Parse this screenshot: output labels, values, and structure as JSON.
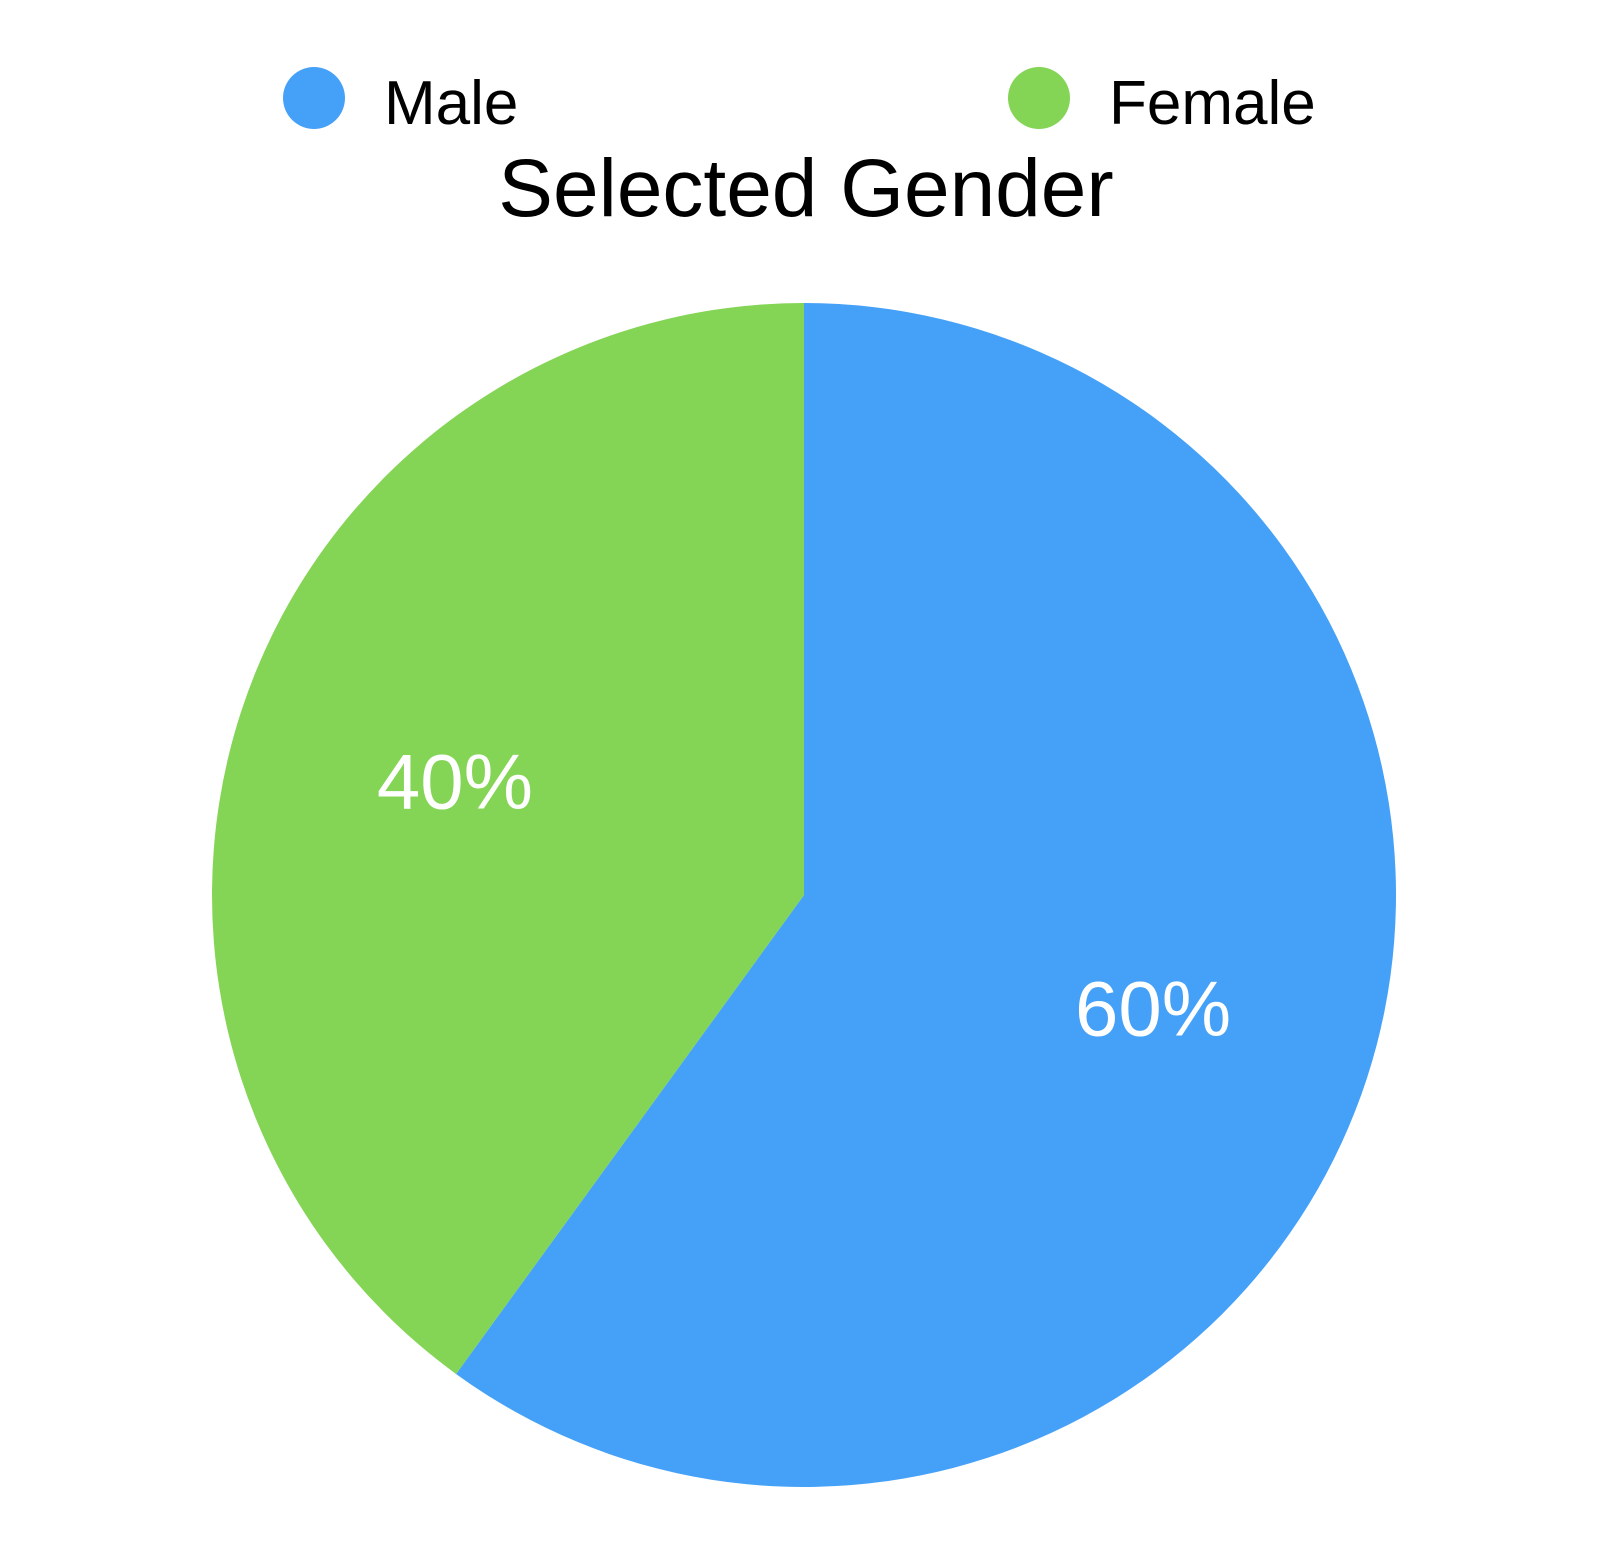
{
  "chart_data": {
    "type": "pie",
    "title": "Selected Gender",
    "legend_position": "top",
    "categories": [
      "Male",
      "Female"
    ],
    "values": [
      60,
      40
    ],
    "labels": [
      "60%",
      "40%"
    ],
    "colors": [
      "#45a1f7",
      "#84d455"
    ]
  }
}
